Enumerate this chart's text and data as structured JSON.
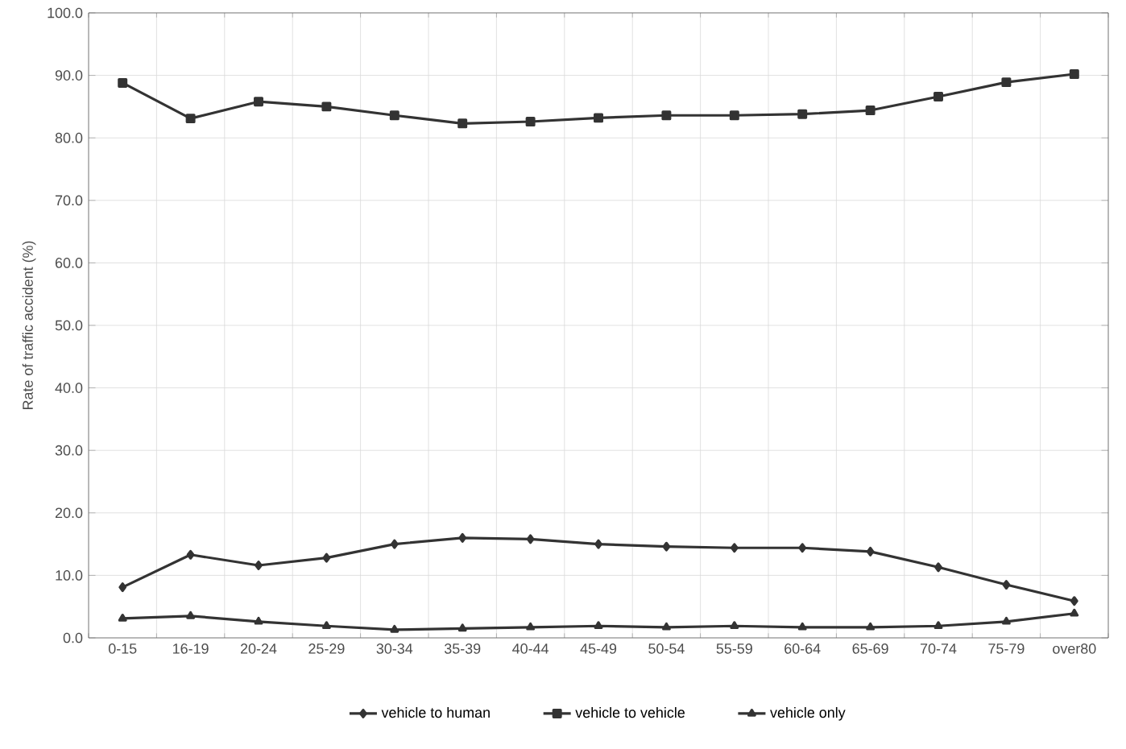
{
  "chart_data": {
    "type": "line",
    "ylabel": "Rate of traffic accident (%)",
    "categories": [
      "0-15",
      "16-19",
      "20-24",
      "25-29",
      "30-34",
      "35-39",
      "40-44",
      "45-49",
      "50-54",
      "55-59",
      "60-64",
      "65-69",
      "70-74",
      "75-79",
      "over80"
    ],
    "series": [
      {
        "name": "vehicle to human",
        "color": "#333333",
        "marker": "diamond",
        "values": [
          8.1,
          13.3,
          11.6,
          12.8,
          15.0,
          16.0,
          15.8,
          15.0,
          14.6,
          14.4,
          14.4,
          13.8,
          11.3,
          8.5,
          5.9
        ]
      },
      {
        "name": "vehicle to vehicle",
        "color": "#333333",
        "marker": "square",
        "values": [
          88.8,
          83.1,
          85.8,
          85.0,
          83.6,
          82.3,
          82.6,
          83.2,
          83.6,
          83.6,
          83.8,
          84.4,
          86.6,
          88.9,
          90.2
        ]
      },
      {
        "name": "vehicle only",
        "color": "#333333",
        "marker": "triangle",
        "values": [
          3.1,
          3.5,
          2.6,
          1.9,
          1.3,
          1.5,
          1.7,
          1.9,
          1.7,
          1.9,
          1.7,
          1.7,
          1.9,
          2.6,
          3.9
        ]
      }
    ],
    "ylim": [
      0,
      100
    ],
    "yticks": [
      {
        "value": 0,
        "label": "0.0"
      },
      {
        "value": 10,
        "label": "10.0"
      },
      {
        "value": 20,
        "label": "20.0"
      },
      {
        "value": 30,
        "label": "30.0"
      },
      {
        "value": 40,
        "label": "40.0"
      },
      {
        "value": 50,
        "label": "50.0"
      },
      {
        "value": 60,
        "label": "60.0"
      },
      {
        "value": 70,
        "label": "70.0"
      },
      {
        "value": 80,
        "label": "80.0"
      },
      {
        "value": 90,
        "label": "90.0"
      },
      {
        "value": 100,
        "label": "100.0"
      }
    ],
    "grid": true,
    "legend": "bottom",
    "line_style": "solid"
  }
}
